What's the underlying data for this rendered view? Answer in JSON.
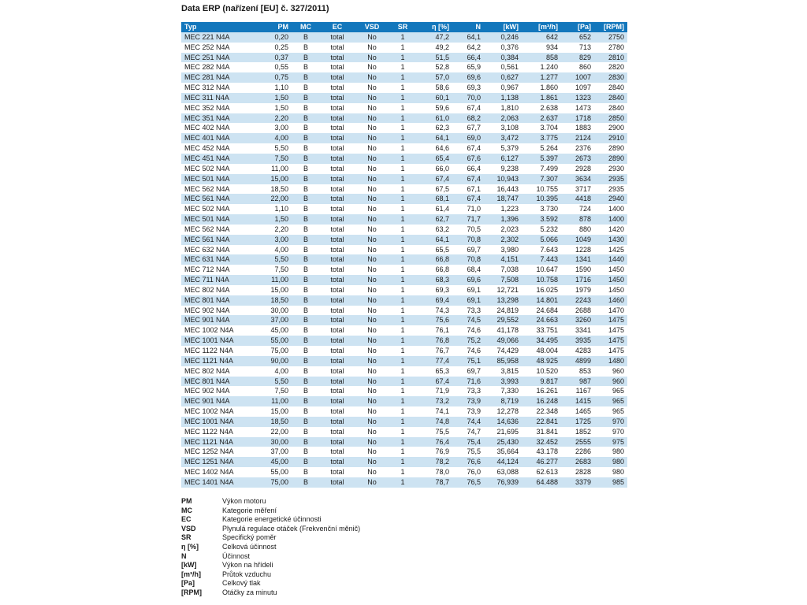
{
  "page_title": "Data ERP (nařízení [EU] č. 327/2011)",
  "colors": {
    "header_bg": "#1377bc",
    "row_alt_bg": "#cde3f2",
    "row_bg": "#ffffff",
    "header_text": "#ffffff"
  },
  "table": {
    "headers": [
      "Typ",
      "PM",
      "MC",
      "EC",
      "VSD",
      "SR",
      "η [%]",
      "N",
      "[kW]",
      "[m³/h]",
      "[Pa]",
      "[RPM]"
    ],
    "rows": [
      [
        "MEC 221 N4A",
        "0,20",
        "B",
        "total",
        "No",
        "1",
        "47,2",
        "64,1",
        "0,246",
        "642",
        "652",
        "2750"
      ],
      [
        "MEC 252 N4A",
        "0,25",
        "B",
        "total",
        "No",
        "1",
        "49,2",
        "64,2",
        "0,376",
        "934",
        "713",
        "2780"
      ],
      [
        "MEC 251 N4A",
        "0,37",
        "B",
        "total",
        "No",
        "1",
        "51,5",
        "66,4",
        "0,384",
        "858",
        "829",
        "2810"
      ],
      [
        "MEC 282 N4A",
        "0,55",
        "B",
        "total",
        "No",
        "1",
        "52,8",
        "65,9",
        "0,561",
        "1.240",
        "860",
        "2820"
      ],
      [
        "MEC 281 N4A",
        "0,75",
        "B",
        "total",
        "No",
        "1",
        "57,0",
        "69,6",
        "0,627",
        "1.277",
        "1007",
        "2830"
      ],
      [
        "MEC 312 N4A",
        "1,10",
        "B",
        "total",
        "No",
        "1",
        "58,6",
        "69,3",
        "0,967",
        "1.860",
        "1097",
        "2840"
      ],
      [
        "MEC 311 N4A",
        "1,50",
        "B",
        "total",
        "No",
        "1",
        "60,1",
        "70,0",
        "1,138",
        "1.861",
        "1323",
        "2840"
      ],
      [
        "MEC 352 N4A",
        "1,50",
        "B",
        "total",
        "No",
        "1",
        "59,6",
        "67,4",
        "1,810",
        "2.638",
        "1473",
        "2840"
      ],
      [
        "MEC 351 N4A",
        "2,20",
        "B",
        "total",
        "No",
        "1",
        "61,0",
        "68,2",
        "2,063",
        "2.637",
        "1718",
        "2850"
      ],
      [
        "MEC 402 N4A",
        "3,00",
        "B",
        "total",
        "No",
        "1",
        "62,3",
        "67,7",
        "3,108",
        "3.704",
        "1883",
        "2900"
      ],
      [
        "MEC 401 N4A",
        "4,00",
        "B",
        "total",
        "No",
        "1",
        "64,1",
        "69,0",
        "3,472",
        "3.775",
        "2124",
        "2910"
      ],
      [
        "MEC 452 N4A",
        "5,50",
        "B",
        "total",
        "No",
        "1",
        "64,6",
        "67,4",
        "5,379",
        "5.264",
        "2376",
        "2890"
      ],
      [
        "MEC 451 N4A",
        "7,50",
        "B",
        "total",
        "No",
        "1",
        "65,4",
        "67,6",
        "6,127",
        "5.397",
        "2673",
        "2890"
      ],
      [
        "MEC 502 N4A",
        "11,00",
        "B",
        "total",
        "No",
        "1",
        "66,0",
        "66,4",
        "9,238",
        "7.499",
        "2928",
        "2930"
      ],
      [
        "MEC 501 N4A",
        "15,00",
        "B",
        "total",
        "No",
        "1",
        "67,4",
        "67,4",
        "10,943",
        "7.307",
        "3634",
        "2935"
      ],
      [
        "MEC 562 N4A",
        "18,50",
        "B",
        "total",
        "No",
        "1",
        "67,5",
        "67,1",
        "16,443",
        "10.755",
        "3717",
        "2935"
      ],
      [
        "MEC 561 N4A",
        "22,00",
        "B",
        "total",
        "No",
        "1",
        "68,1",
        "67,4",
        "18,747",
        "10.395",
        "4418",
        "2940"
      ],
      [
        "MEC 502 N4A",
        "1,10",
        "B",
        "total",
        "No",
        "1",
        "61,4",
        "71,0",
        "1,223",
        "3.730",
        "724",
        "1400"
      ],
      [
        "MEC 501 N4A",
        "1,50",
        "B",
        "total",
        "No",
        "1",
        "62,7",
        "71,7",
        "1,396",
        "3.592",
        "878",
        "1400"
      ],
      [
        "MEC 562 N4A",
        "2,20",
        "B",
        "total",
        "No",
        "1",
        "63,2",
        "70,5",
        "2,023",
        "5.232",
        "880",
        "1420"
      ],
      [
        "MEC 561 N4A",
        "3,00",
        "B",
        "total",
        "No",
        "1",
        "64,1",
        "70,8",
        "2,302",
        "5.066",
        "1049",
        "1430"
      ],
      [
        "MEC 632 N4A",
        "4,00",
        "B",
        "total",
        "No",
        "1",
        "65,5",
        "69,7",
        "3,980",
        "7.643",
        "1228",
        "1425"
      ],
      [
        "MEC 631 N4A",
        "5,50",
        "B",
        "total",
        "No",
        "1",
        "66,8",
        "70,8",
        "4,151",
        "7.443",
        "1341",
        "1440"
      ],
      [
        "MEC 712 N4A",
        "7,50",
        "B",
        "total",
        "No",
        "1",
        "66,8",
        "68,4",
        "7,038",
        "10.647",
        "1590",
        "1450"
      ],
      [
        "MEC 711 N4A",
        "11,00",
        "B",
        "total",
        "No",
        "1",
        "68,3",
        "69,6",
        "7,508",
        "10.758",
        "1716",
        "1450"
      ],
      [
        "MEC 802 N4A",
        "15,00",
        "B",
        "total",
        "No",
        "1",
        "69,3",
        "69,1",
        "12,721",
        "16.025",
        "1979",
        "1450"
      ],
      [
        "MEC 801 N4A",
        "18,50",
        "B",
        "total",
        "No",
        "1",
        "69,4",
        "69,1",
        "13,298",
        "14.801",
        "2243",
        "1460"
      ],
      [
        "MEC 902 N4A",
        "30,00",
        "B",
        "total",
        "No",
        "1",
        "74,3",
        "73,3",
        "24,819",
        "24.684",
        "2688",
        "1470"
      ],
      [
        "MEC 901 N4A",
        "37,00",
        "B",
        "total",
        "No",
        "1",
        "75,6",
        "74,5",
        "29,552",
        "24.663",
        "3260",
        "1475"
      ],
      [
        "MEC 1002 N4A",
        "45,00",
        "B",
        "total",
        "No",
        "1",
        "76,1",
        "74,6",
        "41,178",
        "33.751",
        "3341",
        "1475"
      ],
      [
        "MEC 1001 N4A",
        "55,00",
        "B",
        "total",
        "No",
        "1",
        "76,8",
        "75,2",
        "49,066",
        "34.495",
        "3935",
        "1475"
      ],
      [
        "MEC 1122 N4A",
        "75,00",
        "B",
        "total",
        "No",
        "1",
        "76,7",
        "74,6",
        "74,429",
        "48.004",
        "4283",
        "1475"
      ],
      [
        "MEC 1121 N4A",
        "90,00",
        "B",
        "total",
        "No",
        "1",
        "77,4",
        "75,1",
        "85,958",
        "48.925",
        "4899",
        "1480"
      ],
      [
        "MEC 802 N4A",
        "4,00",
        "B",
        "total",
        "No",
        "1",
        "65,3",
        "69,7",
        "3,815",
        "10.520",
        "853",
        "960"
      ],
      [
        "MEC 801 N4A",
        "5,50",
        "B",
        "total",
        "No",
        "1",
        "67,4",
        "71,6",
        "3,993",
        "9.817",
        "987",
        "960"
      ],
      [
        "MEC 902 N4A",
        "7,50",
        "B",
        "total",
        "No",
        "1",
        "71,9",
        "73,3",
        "7,330",
        "16.261",
        "1167",
        "965"
      ],
      [
        "MEC 901 N4A",
        "11,00",
        "B",
        "total",
        "No",
        "1",
        "73,2",
        "73,9",
        "8,719",
        "16.248",
        "1415",
        "965"
      ],
      [
        "MEC 1002 N4A",
        "15,00",
        "B",
        "total",
        "No",
        "1",
        "74,1",
        "73,9",
        "12,278",
        "22.348",
        "1465",
        "965"
      ],
      [
        "MEC 1001 N4A",
        "18,50",
        "B",
        "total",
        "No",
        "1",
        "74,8",
        "74,4",
        "14,636",
        "22.841",
        "1725",
        "970"
      ],
      [
        "MEC 1122 N4A",
        "22,00",
        "B",
        "total",
        "No",
        "1",
        "75,5",
        "74,7",
        "21,695",
        "31.841",
        "1852",
        "970"
      ],
      [
        "MEC 1121 N4A",
        "30,00",
        "B",
        "total",
        "No",
        "1",
        "76,4",
        "75,4",
        "25,430",
        "32.452",
        "2555",
        "975"
      ],
      [
        "MEC 1252 N4A",
        "37,00",
        "B",
        "total",
        "No",
        "1",
        "76,9",
        "75,5",
        "35,664",
        "43.178",
        "2286",
        "980"
      ],
      [
        "MEC 1251 N4A",
        "45,00",
        "B",
        "total",
        "No",
        "1",
        "78,2",
        "76,6",
        "44,124",
        "46.277",
        "2683",
        "980"
      ],
      [
        "MEC 1402 N4A",
        "55,00",
        "B",
        "total",
        "No",
        "1",
        "78,0",
        "76,0",
        "63,088",
        "62.613",
        "2828",
        "980"
      ],
      [
        "MEC 1401 N4A",
        "75,00",
        "B",
        "total",
        "No",
        "1",
        "78,7",
        "76,5",
        "76,939",
        "64.488",
        "3379",
        "985"
      ]
    ]
  },
  "legend": [
    {
      "abbr": "PM",
      "desc": "Výkon motoru"
    },
    {
      "abbr": "MC",
      "desc": "Kategorie měření"
    },
    {
      "abbr": "EC",
      "desc": "Kategorie energetické účinnosti"
    },
    {
      "abbr": "VSD",
      "desc": "Plynulá regulace otáček (Frekvenční měnič)"
    },
    {
      "abbr": "SR",
      "desc": "Specifický poměr"
    },
    {
      "abbr": "η [%]",
      "desc": "Celková účinnost"
    },
    {
      "abbr": "N",
      "desc": "Účinnost"
    },
    {
      "abbr": "[kW]",
      "desc": "Výkon na hřídeli"
    },
    {
      "abbr": "[m³/h]",
      "desc": "Průtok vzduchu"
    },
    {
      "abbr": "[Pa]",
      "desc": "Celkový tlak"
    },
    {
      "abbr": "[RPM]",
      "desc": "Otáčky za minutu"
    }
  ]
}
